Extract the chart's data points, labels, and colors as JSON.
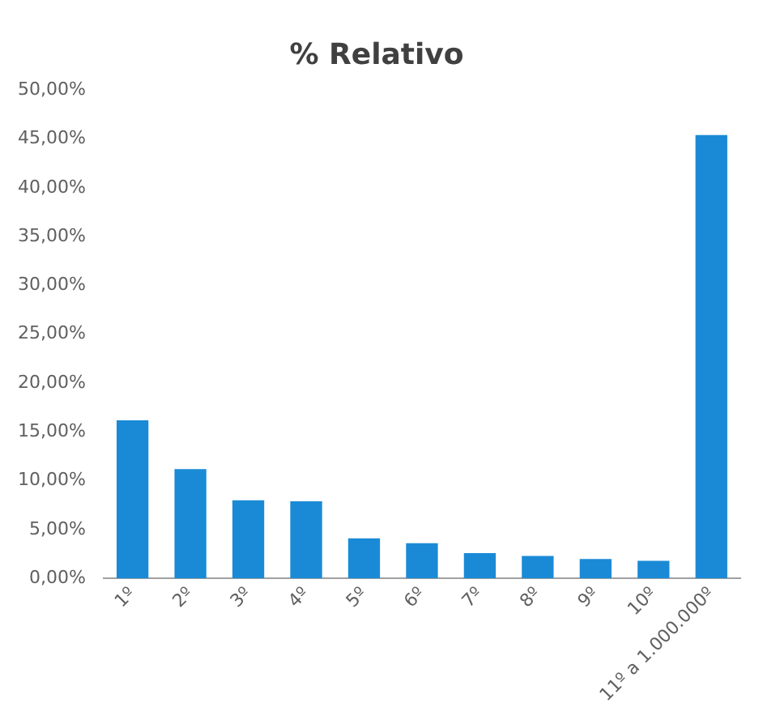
{
  "chart_data": {
    "type": "bar",
    "title": "% Relativo",
    "categories": [
      "1º",
      "2º",
      "3º",
      "4º",
      "5º",
      "6º",
      "7º",
      "8º",
      "9º",
      "10º",
      "11º a 1.000.000º"
    ],
    "values": [
      16.2,
      11.2,
      8.0,
      7.9,
      4.1,
      3.6,
      2.6,
      2.3,
      2.0,
      1.8,
      45.4
    ],
    "color": "#1a8ad6",
    "ylim": [
      0,
      50
    ],
    "yticks": [
      {
        "value": 0,
        "label": "0,00%"
      },
      {
        "value": 5,
        "label": "5,00%"
      },
      {
        "value": 10,
        "label": "10,00%"
      },
      {
        "value": 15,
        "label": "15,00%"
      },
      {
        "value": 20,
        "label": "20,00%"
      },
      {
        "value": 25,
        "label": "25,00%"
      },
      {
        "value": 30,
        "label": "30,00%"
      },
      {
        "value": 35,
        "label": "35,00%"
      },
      {
        "value": 40,
        "label": "40,00%"
      },
      {
        "value": 45,
        "label": "45,00%"
      },
      {
        "value": 50,
        "label": "50,00%"
      }
    ],
    "grid": false,
    "legend": false
  }
}
